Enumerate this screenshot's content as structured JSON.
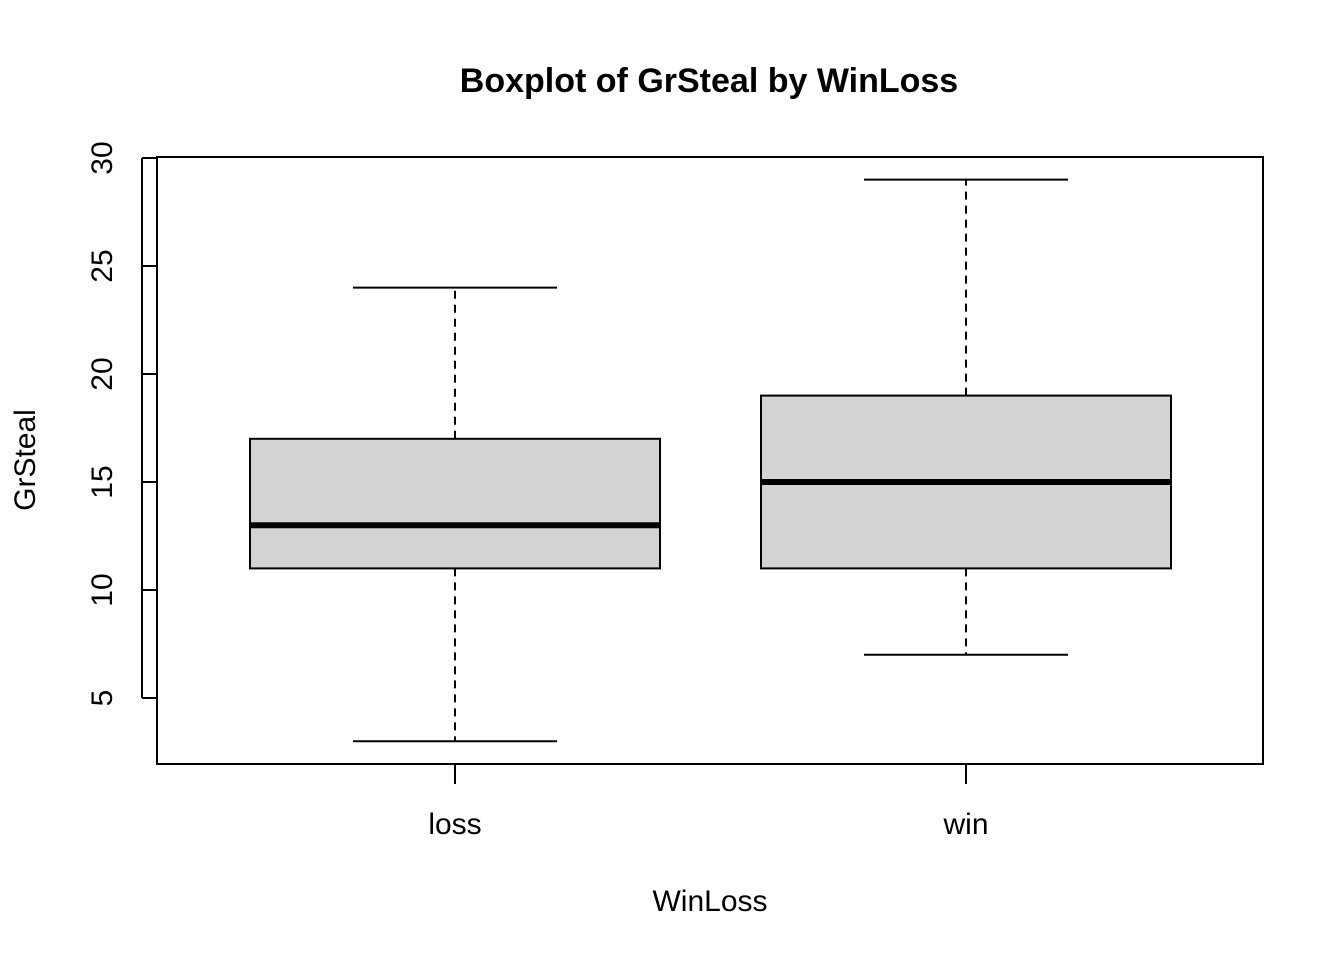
{
  "chart_data": {
    "type": "boxplot",
    "title": "Boxplot of GrSteal by WinLoss",
    "xlabel": "WinLoss",
    "ylabel": "GrSteal",
    "categories": [
      "loss",
      "win"
    ],
    "boxes": [
      {
        "category": "loss",
        "min": 3,
        "q1": 11,
        "median": 13,
        "q3": 17,
        "max": 24
      },
      {
        "category": "win",
        "min": 7,
        "q1": 11,
        "median": 15,
        "q3": 19,
        "max": 29
      }
    ],
    "yticks": [
      5,
      10,
      15,
      20,
      25,
      30
    ],
    "ylim": [
      2,
      30
    ],
    "grid": false,
    "box_fill": "#d3d3d3",
    "line_color": "#000000"
  }
}
